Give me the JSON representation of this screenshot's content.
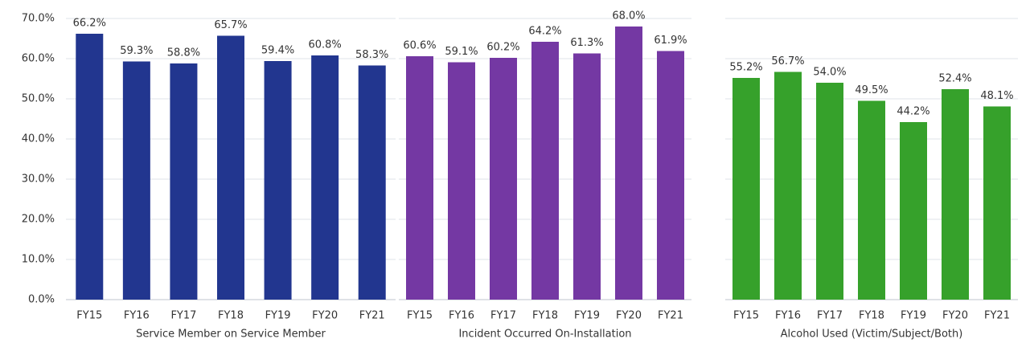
{
  "chart_data": [
    {
      "type": "bar",
      "xlabel": "Service Member on Service Member",
      "categories": [
        "FY15",
        "FY16",
        "FY17",
        "FY18",
        "FY19",
        "FY20",
        "FY21"
      ],
      "values": [
        66.2,
        59.3,
        58.8,
        65.7,
        59.4,
        60.8,
        58.3
      ],
      "value_labels": [
        "66.2%",
        "59.3%",
        "58.8%",
        "65.7%",
        "59.4%",
        "60.8%",
        "58.3%"
      ],
      "color": "#22368f",
      "ylim": [
        0,
        70
      ],
      "yticks": [
        {
          "value": 0,
          "label": "0.0%"
        },
        {
          "value": 10,
          "label": "10.0%"
        },
        {
          "value": 20,
          "label": "20.0%"
        },
        {
          "value": 30,
          "label": "30.0%"
        },
        {
          "value": 40,
          "label": "40.0%"
        },
        {
          "value": 50,
          "label": "50.0%"
        },
        {
          "value": 60,
          "label": "60.0%"
        },
        {
          "value": 70,
          "label": "70.0%"
        }
      ],
      "show_tick_labels": true,
      "grid": true
    },
    {
      "type": "bar",
      "xlabel": "Incident Occurred On-Installation",
      "categories": [
        "FY15",
        "FY16",
        "FY17",
        "FY18",
        "FY19",
        "FY20",
        "FY21"
      ],
      "values": [
        60.6,
        59.1,
        60.2,
        64.2,
        61.3,
        68.0,
        61.9
      ],
      "value_labels": [
        "60.6%",
        "59.1%",
        "60.2%",
        "64.2%",
        "61.3%",
        "68.0%",
        "61.9%"
      ],
      "color": "#7438a3",
      "ylim": [
        0,
        70
      ],
      "yticks": [
        0,
        10,
        20,
        30,
        40,
        50,
        60,
        70
      ],
      "show_tick_labels": false,
      "grid": true
    },
    {
      "type": "bar",
      "xlabel": "Alcohol Used (Victim/Subject/Both)",
      "categories": [
        "FY15",
        "FY16",
        "FY17",
        "FY18",
        "FY19",
        "FY20",
        "FY21"
      ],
      "values": [
        55.2,
        56.7,
        54.0,
        49.5,
        44.2,
        52.4,
        48.1
      ],
      "value_labels": [
        "55.2%",
        "56.7%",
        "54.0%",
        "49.5%",
        "44.2%",
        "52.4%",
        "48.1%"
      ],
      "color": "#36a12b",
      "ylim": [
        0,
        70
      ],
      "yticks": [
        0,
        10,
        20,
        30,
        40,
        50,
        60,
        70
      ],
      "show_tick_labels": false,
      "grid": true
    }
  ]
}
